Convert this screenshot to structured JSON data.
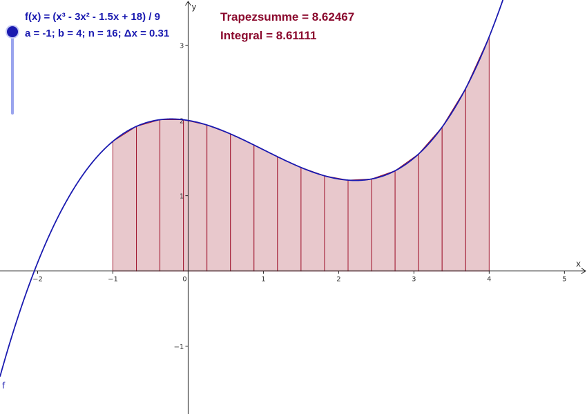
{
  "labels": {
    "function_def": "f(x) = (x³ - 3x² - 1.5x + 18) / 9",
    "params": "a = -1; b = 4; n = 16; Δx = 0.31",
    "trapezoid_sum": "Trapezsumme = 8.62467",
    "integral": "Integral = 8.61111",
    "curve_name": "f"
  },
  "colors": {
    "curve": "#1a1ab0",
    "trapezoid_fill": "#e8c8cc",
    "trapezoid_stroke": "#a01830",
    "axis": "#222222",
    "text_blue": "#1a1ab0",
    "text_red": "#8b0a2e"
  },
  "chart_data": {
    "type": "line",
    "function": {
      "coefficients": [
        1,
        -3,
        -1.5,
        18
      ],
      "divisor": 9
    },
    "a": -1,
    "b": 4,
    "n": 16,
    "xlabel": "x",
    "ylabel": "y",
    "xlim": [
      -2.5,
      5.3
    ],
    "ylim": [
      -1.9,
      3.6
    ],
    "x_ticks": [
      -2,
      -1,
      0,
      1,
      2,
      3,
      4,
      5
    ],
    "y_ticks": [
      -1,
      1,
      2,
      3
    ],
    "grid": false
  }
}
